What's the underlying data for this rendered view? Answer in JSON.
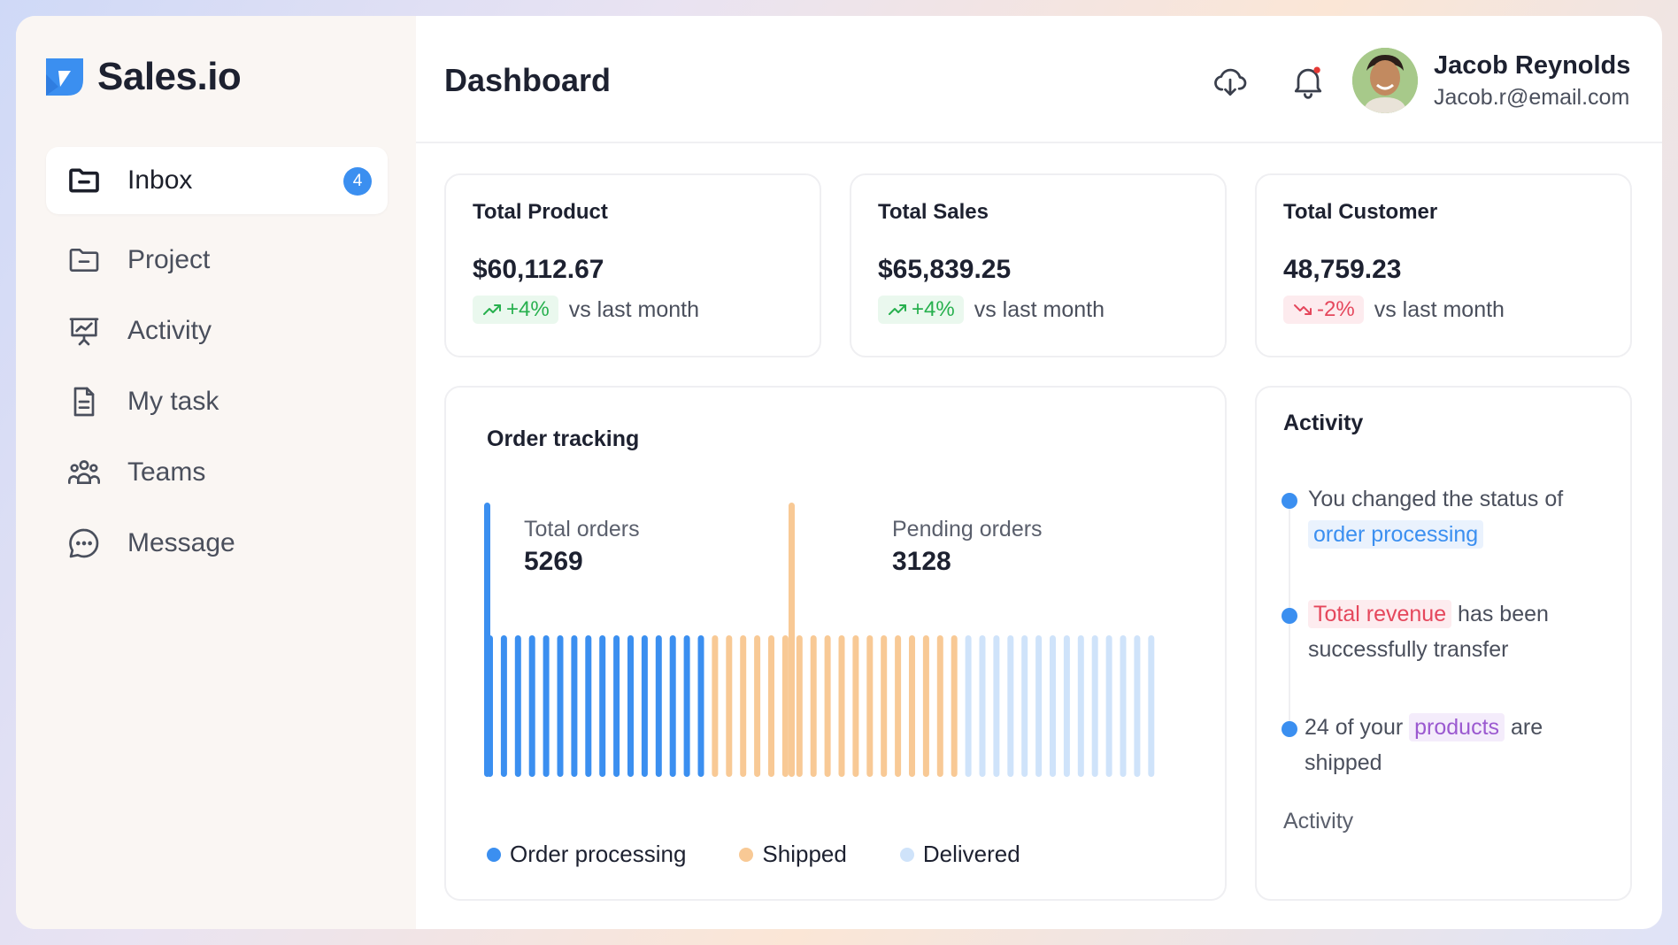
{
  "brand": {
    "name": "Sales.io",
    "accent": "#3b8ff0"
  },
  "sidebar": {
    "items": [
      {
        "label": "Inbox",
        "icon": "folder-icon",
        "badge": "4",
        "active": true
      },
      {
        "label": "Project",
        "icon": "folder-minus-icon"
      },
      {
        "label": "Activity",
        "icon": "presentation-chart-icon"
      },
      {
        "label": "My task",
        "icon": "document-icon"
      },
      {
        "label": "Teams",
        "icon": "users-icon"
      },
      {
        "label": "Message",
        "icon": "chat-bubble-icon"
      }
    ]
  },
  "header": {
    "title": "Dashboard",
    "download_icon": "cloud-download-icon",
    "bell_icon": "bell-icon",
    "user": {
      "name": "Jacob Reynolds",
      "email": "Jacob.r@email.com"
    }
  },
  "stats": [
    {
      "title": "Total Product",
      "value": "$60,112.67",
      "change": "+4%",
      "trend": "up",
      "sub": "vs last month"
    },
    {
      "title": "Total Sales",
      "value": "$65,839.25",
      "change": "+4%",
      "trend": "up",
      "sub": "vs last month"
    },
    {
      "title": "Total Customer",
      "value": "48,759.23",
      "change": "-2%",
      "trend": "down",
      "sub": "vs last month"
    }
  ],
  "order_tracking": {
    "title": "Order tracking",
    "total_label": "Total orders",
    "total_value": "5269",
    "pending_label": "Pending orders",
    "pending_value": "3128",
    "legend": [
      {
        "label": "Order processing",
        "color": "#3b8ff0"
      },
      {
        "label": "Shipped",
        "color": "#f8c995"
      },
      {
        "label": "Delivered",
        "color": "#cfe3fa"
      }
    ],
    "bars": {
      "processing": 16,
      "shipped": 18,
      "delivered": 14
    }
  },
  "activity": {
    "title": "Activity",
    "items": [
      {
        "pre": "You changed the status of ",
        "highlight": "order processing",
        "post": "",
        "color": "blue"
      },
      {
        "pre": "",
        "highlight": "Total revenue",
        "post": " has been successfully transfer",
        "color": "red"
      },
      {
        "pre": "24 of your ",
        "highlight": "products",
        "post": " are shipped",
        "color": "purple"
      }
    ],
    "footer": "Activity"
  }
}
